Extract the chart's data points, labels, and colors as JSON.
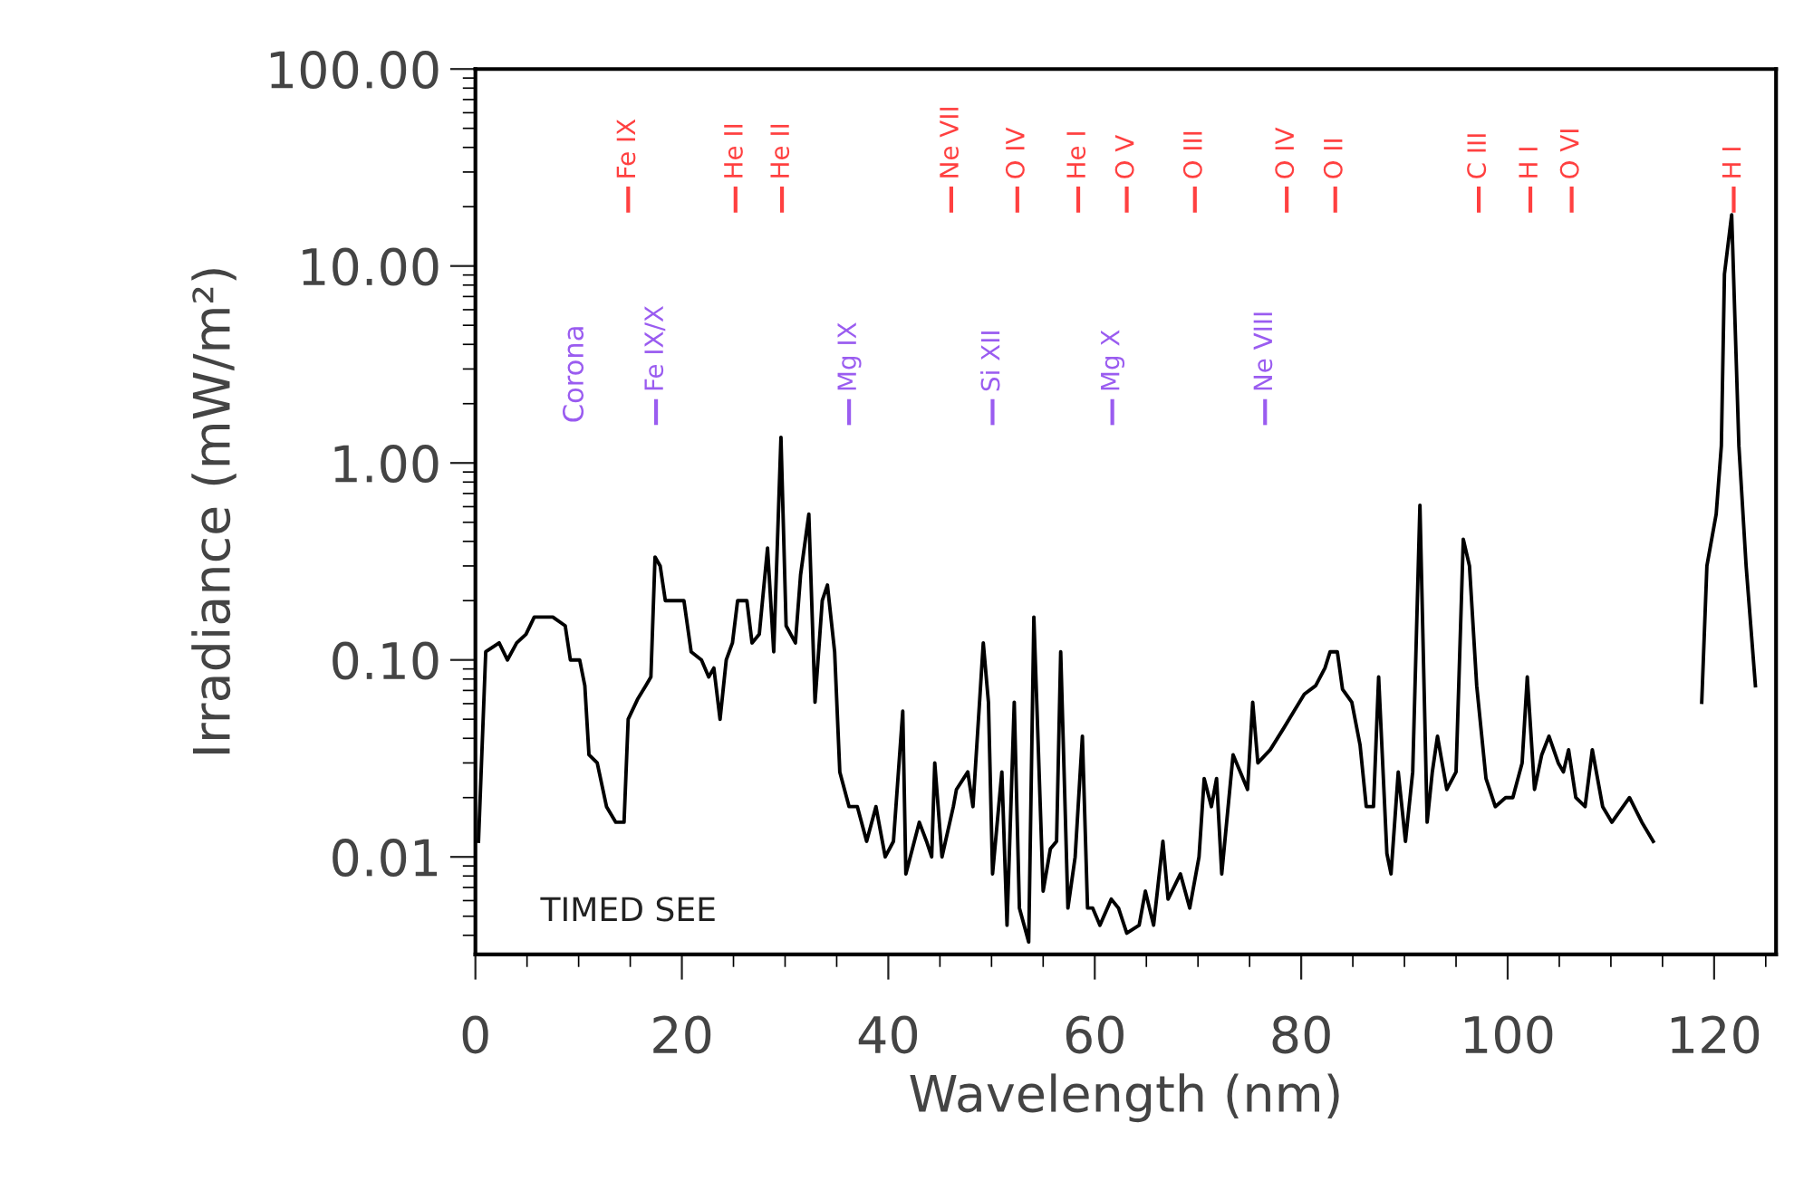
{
  "chart_data": {
    "type": "line",
    "xlabel": "Wavelength (nm)",
    "ylabel": "Irradiance (mW/m²)",
    "log": "y",
    "grid": false,
    "marker": "none",
    "line_style": "solid",
    "xlim": [
      0,
      126
    ],
    "xticks": [
      0,
      20,
      40,
      60,
      80,
      100,
      120
    ],
    "ylim": [
      0.0032,
      100
    ],
    "yticks": [
      {
        "value": 0.01,
        "label": "0.01"
      },
      {
        "value": 0.1,
        "label": "0.10"
      },
      {
        "value": 1,
        "label": "1.00"
      },
      {
        "value": 10,
        "label": "10.00"
      },
      {
        "value": 100,
        "label": "100.00"
      }
    ],
    "series": [
      {
        "color": "#000000",
        "x": [
          0.3,
          1.0,
          2.3,
          3.1,
          4.0,
          4.9,
          5.7,
          7.5,
          8.7,
          9.2,
          10.1,
          10.6,
          11.0,
          11.8,
          12.7,
          13.6,
          14.4,
          14.8,
          15.7,
          16.5,
          17.0,
          17.4,
          17.9,
          18.4,
          20.2,
          20.9,
          21.9,
          22.6,
          23.1,
          23.7,
          24.3,
          24.9,
          25.4,
          26.3,
          26.8,
          27.5,
          28.3,
          28.9,
          29.6,
          30.1,
          31.0,
          31.5,
          32.3,
          32.9,
          33.6,
          34.1,
          34.8,
          35.3,
          36.2,
          37.0,
          37.9,
          38.8,
          39.7,
          40.5,
          41.4,
          41.7,
          43.0,
          43.7,
          44.2,
          44.5,
          45.2,
          46.3,
          46.6,
          47.7,
          48.2,
          49.2,
          49.7,
          50.1,
          51.0,
          51.5,
          52.2,
          52.7,
          53.6,
          54.1,
          55.0,
          55.7,
          56.3,
          56.7,
          57.4,
          58.1,
          58.8,
          59.3,
          59.8,
          60.5,
          61.6,
          62.3,
          63.1,
          64.3,
          64.9,
          65.7,
          66.6,
          67.1,
          68.3,
          69.2,
          70.1,
          70.6,
          71.3,
          71.8,
          72.3,
          73.4,
          74.1,
          74.8,
          75.3,
          75.8,
          77.0,
          78.3,
          79.3,
          80.3,
          81.4,
          82.3,
          82.8,
          83.5,
          84.0,
          84.9,
          85.7,
          86.3,
          87.0,
          87.5,
          88.3,
          88.7,
          89.4,
          90.1,
          90.8,
          91.5,
          92.2,
          92.7,
          93.2,
          94.1,
          95.0,
          95.7,
          96.3,
          97.0,
          97.9,
          98.8,
          99.8,
          100.5,
          101.4,
          101.9,
          102.6,
          103.3,
          104.0,
          104.9,
          105.4,
          105.9,
          106.6,
          107.5,
          108.2,
          109.2,
          110.1,
          111.8,
          113.0,
          114.1,
          116.0,
          118.8,
          119.3,
          120.2,
          120.7,
          121.0,
          121.7,
          122.4,
          123.1,
          124.0
        ],
        "values": [
          0.012,
          0.11,
          0.122,
          0.1,
          0.122,
          0.135,
          0.165,
          0.165,
          0.149,
          0.1,
          0.1,
          0.074,
          0.033,
          0.03,
          0.018,
          0.015,
          0.015,
          0.05,
          0.063,
          0.074,
          0.082,
          0.333,
          0.3,
          0.2,
          0.2,
          0.11,
          0.1,
          0.082,
          0.091,
          0.05,
          0.1,
          0.122,
          0.2,
          0.2,
          0.122,
          0.135,
          0.37,
          0.11,
          1.35,
          0.149,
          0.122,
          0.27,
          0.55,
          0.061,
          0.2,
          0.24,
          0.11,
          0.027,
          0.018,
          0.018,
          0.012,
          0.018,
          0.01,
          0.012,
          0.055,
          0.0082,
          0.015,
          0.012,
          0.01,
          0.03,
          0.01,
          0.018,
          0.022,
          0.027,
          0.018,
          0.122,
          0.061,
          0.0082,
          0.027,
          0.0045,
          0.061,
          0.0055,
          0.0037,
          0.165,
          0.0067,
          0.011,
          0.012,
          0.11,
          0.0055,
          0.01,
          0.041,
          0.0055,
          0.0055,
          0.0045,
          0.0061,
          0.0055,
          0.0041,
          0.0045,
          0.0067,
          0.0045,
          0.012,
          0.0061,
          0.0082,
          0.0055,
          0.01,
          0.025,
          0.018,
          0.025,
          0.0082,
          0.033,
          0.027,
          0.022,
          0.061,
          0.03,
          0.035,
          0.045,
          0.055,
          0.067,
          0.074,
          0.091,
          0.11,
          0.11,
          0.071,
          0.061,
          0.037,
          0.018,
          0.018,
          0.082,
          0.0104,
          0.0082,
          0.027,
          0.012,
          0.027,
          0.61,
          0.015,
          0.027,
          0.041,
          0.022,
          0.027,
          0.41,
          0.3,
          0.074,
          0.025,
          0.018,
          0.02,
          0.02,
          0.03,
          0.082,
          0.022,
          0.033,
          0.041,
          0.03,
          0.027,
          0.035,
          0.02,
          0.018,
          0.035,
          0.018,
          0.015,
          0.02,
          0.015,
          0.012,
          null,
          0.061,
          0.3,
          0.55,
          1.22,
          9.1,
          18.2,
          1.22,
          0.3,
          0.074
        ]
      }
    ],
    "ref_lines": [
      {
        "axis": "x",
        "value": 14.8,
        "label": "Fe IX",
        "color": "#ff4040"
      },
      {
        "axis": "x",
        "value": 25.2,
        "label": "He II",
        "color": "#ff4040"
      },
      {
        "axis": "x",
        "value": 29.7,
        "label": "He II",
        "color": "#ff4040"
      },
      {
        "axis": "x",
        "value": 46.1,
        "label": "Ne VII",
        "color": "#ff4040"
      },
      {
        "axis": "x",
        "value": 52.5,
        "label": "O IV",
        "color": "#ff4040"
      },
      {
        "axis": "x",
        "value": 58.4,
        "label": "He I",
        "color": "#ff4040"
      },
      {
        "axis": "x",
        "value": 63.1,
        "label": "O V",
        "color": "#ff4040"
      },
      {
        "axis": "x",
        "value": 69.7,
        "label": "O III",
        "color": "#ff4040"
      },
      {
        "axis": "x",
        "value": 78.6,
        "label": "O IV",
        "color": "#ff4040"
      },
      {
        "axis": "x",
        "value": 83.3,
        "label": "O II",
        "color": "#ff4040"
      },
      {
        "axis": "x",
        "value": 97.2,
        "label": "C III",
        "color": "#ff4040"
      },
      {
        "axis": "x",
        "value": 102.2,
        "label": "H I",
        "color": "#ff4040"
      },
      {
        "axis": "x",
        "value": 106.2,
        "label": "O VI",
        "color": "#ff4040"
      },
      {
        "axis": "x",
        "value": 121.9,
        "label": "H I",
        "color": "#ff4040"
      },
      {
        "axis": "x",
        "value": 17.5,
        "label": "Fe IX/X",
        "color": "#9a5cf0"
      },
      {
        "axis": "x",
        "value": 36.2,
        "label": "Mg IX",
        "color": "#9a5cf0"
      },
      {
        "axis": "x",
        "value": 50.1,
        "label": "Si XII",
        "color": "#9a5cf0"
      },
      {
        "axis": "x",
        "value": 61.7,
        "label": "Mg X",
        "color": "#9a5cf0"
      },
      {
        "axis": "x",
        "value": 76.5,
        "label": "Ne VIII",
        "color": "#9a5cf0"
      }
    ],
    "annotations": [
      "Corona",
      "TIMED SEE"
    ]
  }
}
